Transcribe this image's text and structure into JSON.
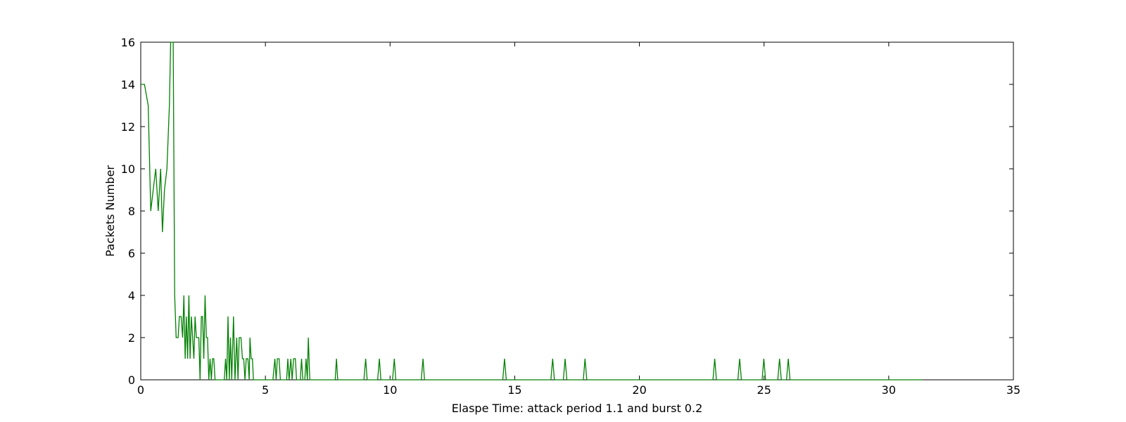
{
  "chart_data": {
    "type": "line",
    "title": "",
    "xlabel": "Elaspe Time: attack period 1.1 and burst 0.2",
    "ylabel": "Packets Number",
    "xlim": [
      0,
      35
    ],
    "ylim": [
      0,
      16
    ],
    "xticks": [
      0,
      5,
      10,
      15,
      20,
      25,
      30,
      35
    ],
    "yticks": [
      0,
      2,
      4,
      6,
      8,
      10,
      12,
      14,
      16
    ],
    "grid": false,
    "legend": "none",
    "series": [
      {
        "color": "#008000",
        "points": [
          [
            0.0,
            14
          ],
          [
            0.15,
            14
          ],
          [
            0.3,
            13
          ],
          [
            0.4,
            8
          ],
          [
            0.5,
            9
          ],
          [
            0.6,
            10
          ],
          [
            0.7,
            8
          ],
          [
            0.8,
            10
          ],
          [
            0.87,
            7
          ],
          [
            0.95,
            9
          ],
          [
            1.05,
            10
          ],
          [
            1.15,
            13
          ],
          [
            1.2,
            16
          ],
          [
            1.3,
            16
          ],
          [
            1.36,
            4
          ],
          [
            1.42,
            2
          ],
          [
            1.5,
            2
          ],
          [
            1.55,
            3
          ],
          [
            1.62,
            3
          ],
          [
            1.68,
            2
          ],
          [
            1.73,
            4
          ],
          [
            1.78,
            1
          ],
          [
            1.83,
            3
          ],
          [
            1.88,
            1
          ],
          [
            1.93,
            4
          ],
          [
            1.98,
            1
          ],
          [
            2.03,
            3
          ],
          [
            2.08,
            2
          ],
          [
            2.13,
            1
          ],
          [
            2.18,
            3
          ],
          [
            2.23,
            2
          ],
          [
            2.33,
            2
          ],
          [
            2.38,
            0
          ],
          [
            2.43,
            3
          ],
          [
            2.48,
            3
          ],
          [
            2.53,
            1
          ],
          [
            2.58,
            4
          ],
          [
            2.63,
            2
          ],
          [
            2.68,
            2
          ],
          [
            2.73,
            0
          ],
          [
            2.78,
            1
          ],
          [
            2.83,
            0
          ],
          [
            2.88,
            1
          ],
          [
            2.93,
            1
          ],
          [
            2.98,
            0
          ],
          [
            3.35,
            0
          ],
          [
            3.4,
            1
          ],
          [
            3.45,
            0
          ],
          [
            3.5,
            3
          ],
          [
            3.55,
            0
          ],
          [
            3.6,
            2
          ],
          [
            3.65,
            0
          ],
          [
            3.72,
            3
          ],
          [
            3.78,
            0
          ],
          [
            3.85,
            2
          ],
          [
            3.9,
            0
          ],
          [
            3.95,
            2
          ],
          [
            4.02,
            2
          ],
          [
            4.08,
            1
          ],
          [
            4.13,
            1
          ],
          [
            4.18,
            0
          ],
          [
            4.23,
            1
          ],
          [
            4.3,
            1
          ],
          [
            4.35,
            0
          ],
          [
            4.38,
            2
          ],
          [
            4.43,
            1
          ],
          [
            4.48,
            1
          ],
          [
            4.52,
            0
          ],
          [
            5.3,
            0
          ],
          [
            5.38,
            1
          ],
          [
            5.43,
            0
          ],
          [
            5.48,
            1
          ],
          [
            5.55,
            1
          ],
          [
            5.6,
            0
          ],
          [
            5.85,
            0
          ],
          [
            5.9,
            1
          ],
          [
            5.95,
            0
          ],
          [
            6.02,
            1
          ],
          [
            6.07,
            0
          ],
          [
            6.13,
            1
          ],
          [
            6.2,
            1
          ],
          [
            6.25,
            0
          ],
          [
            6.4,
            0
          ],
          [
            6.45,
            1
          ],
          [
            6.5,
            0
          ],
          [
            6.58,
            0
          ],
          [
            6.63,
            1
          ],
          [
            6.68,
            0
          ],
          [
            6.72,
            2
          ],
          [
            6.78,
            0
          ],
          [
            7.8,
            0
          ],
          [
            7.85,
            1
          ],
          [
            7.9,
            0
          ],
          [
            8.95,
            0
          ],
          [
            9.02,
            1
          ],
          [
            9.08,
            0
          ],
          [
            9.5,
            0
          ],
          [
            9.57,
            1
          ],
          [
            9.63,
            0
          ],
          [
            10.1,
            0
          ],
          [
            10.17,
            1
          ],
          [
            10.23,
            0
          ],
          [
            11.25,
            0
          ],
          [
            11.32,
            1
          ],
          [
            11.38,
            0
          ],
          [
            14.52,
            0
          ],
          [
            14.59,
            1
          ],
          [
            14.66,
            0
          ],
          [
            16.45,
            0
          ],
          [
            16.52,
            1
          ],
          [
            16.59,
            0
          ],
          [
            16.95,
            0
          ],
          [
            17.02,
            1
          ],
          [
            17.09,
            0
          ],
          [
            17.75,
            0
          ],
          [
            17.82,
            1
          ],
          [
            17.89,
            0
          ],
          [
            22.95,
            0
          ],
          [
            23.02,
            1
          ],
          [
            23.09,
            0
          ],
          [
            23.95,
            0
          ],
          [
            24.02,
            1
          ],
          [
            24.09,
            0
          ],
          [
            24.92,
            0
          ],
          [
            24.99,
            1
          ],
          [
            25.06,
            0
          ],
          [
            25.55,
            0
          ],
          [
            25.62,
            1
          ],
          [
            25.69,
            0
          ],
          [
            25.9,
            0
          ],
          [
            25.97,
            1
          ],
          [
            26.04,
            0
          ],
          [
            31.35,
            0
          ]
        ]
      }
    ]
  }
}
